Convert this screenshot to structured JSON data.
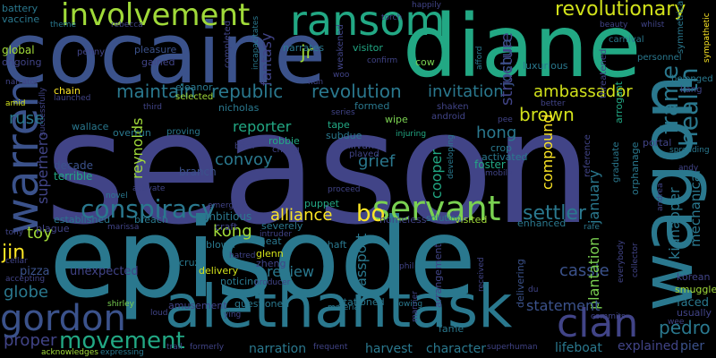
{
  "words": [
    {
      "text": "season",
      "color": "#414487"
    },
    {
      "text": "episode",
      "color": "#2a788e"
    },
    {
      "text": "diane",
      "color": "#22a884"
    },
    {
      "text": "cocaine",
      "color": "#3b528b"
    },
    {
      "text": "alethantask",
      "color": "#2a788e"
    },
    {
      "text": "wagon",
      "color": "#2a788e"
    },
    {
      "text": "ransom",
      "color": "#22a884"
    },
    {
      "text": "involvement",
      "color": "#a0da39"
    },
    {
      "text": "warren",
      "color": "#3b528b"
    },
    {
      "text": "gordon",
      "color": "#3b528b"
    },
    {
      "text": "servant",
      "color": "#7ad151"
    },
    {
      "text": "conspiracy",
      "color": "#2a788e"
    },
    {
      "text": "clan",
      "color": "#414487"
    },
    {
      "text": "movement",
      "color": "#22a884"
    },
    {
      "text": "revolutionary",
      "color": "#d2e21b"
    },
    {
      "text": "republic",
      "color": "#2a788e"
    },
    {
      "text": "revolution",
      "color": "#2a788e"
    },
    {
      "text": "maintain",
      "color": "#2a788e"
    },
    {
      "text": "invitation",
      "color": "#2a788e"
    },
    {
      "text": "settler",
      "color": "#2a788e"
    },
    {
      "text": "health",
      "color": "#2a788e"
    },
    {
      "text": "frame",
      "color": "#2a788e"
    },
    {
      "text": "ambassador",
      "color": "#d2e21b"
    },
    {
      "text": "brown",
      "color": "#d2e21b"
    },
    {
      "text": "structure",
      "color": "#414487"
    },
    {
      "text": "fantasy",
      "color": "#414487"
    },
    {
      "text": "joshua",
      "color": "#3b528b"
    },
    {
      "text": "jr",
      "color": "#a0da39"
    },
    {
      "text": "alliance",
      "color": "#fde725"
    },
    {
      "text": "bo",
      "color": "#fde725"
    },
    {
      "text": "pedro",
      "color": "#2a788e"
    },
    {
      "text": "cassie",
      "color": "#3b528b"
    },
    {
      "text": "kong",
      "color": "#a0da39"
    },
    {
      "text": "jin",
      "color": "#fde725"
    },
    {
      "text": "ruse",
      "color": "#2a788e"
    },
    {
      "text": "superhero",
      "color": "#414487"
    },
    {
      "text": "reynolds",
      "color": "#a0da39"
    },
    {
      "text": "convoy",
      "color": "#2a788e"
    },
    {
      "text": "grief",
      "color": "#2a788e"
    },
    {
      "text": "hong",
      "color": "#2a788e"
    },
    {
      "text": "reporter",
      "color": "#22a884"
    },
    {
      "text": "january",
      "color": "#2a788e"
    },
    {
      "text": "compound",
      "color": "#fde725"
    },
    {
      "text": "cooper",
      "color": "#22a884"
    },
    {
      "text": "kidnapper",
      "color": "#2a788e"
    },
    {
      "text": "mechanical",
      "color": "#2a788e"
    },
    {
      "text": "plantation",
      "color": "#7ad151"
    },
    {
      "text": "statement",
      "color": "#3b528b"
    },
    {
      "text": "passport",
      "color": "#2a788e"
    },
    {
      "text": "review",
      "color": "#2a788e"
    },
    {
      "text": "toy",
      "color": "#a0da39"
    },
    {
      "text": "globe",
      "color": "#2a788e"
    },
    {
      "text": "proper",
      "color": "#414487"
    },
    {
      "text": "narration",
      "color": "#2a788e"
    },
    {
      "text": "harvest",
      "color": "#2a788e"
    },
    {
      "text": "character",
      "color": "#2a788e"
    },
    {
      "text": "lifeboat",
      "color": "#2a788e"
    },
    {
      "text": "explained",
      "color": "#414487"
    },
    {
      "text": "pier",
      "color": "#3b528b"
    },
    {
      "text": "faced",
      "color": "#2a788e"
    },
    {
      "text": "usually",
      "color": "#414487"
    },
    {
      "text": "smuggle",
      "color": "#a0da39"
    },
    {
      "text": "korean",
      "color": "#414487"
    },
    {
      "text": "pizza",
      "color": "#3b528b"
    },
    {
      "text": "unexpected",
      "color": "#414487"
    },
    {
      "text": "ambitious",
      "color": "#2a788e"
    },
    {
      "text": "branch",
      "color": "#3b528b"
    },
    {
      "text": "decade",
      "color": "#3b528b"
    },
    {
      "text": "terrible",
      "color": "#22a884"
    },
    {
      "text": "foster",
      "color": "#22a884"
    },
    {
      "text": "delivering",
      "color": "#3b528b"
    },
    {
      "text": "arrangement",
      "color": "#414487"
    },
    {
      "text": "fame",
      "color": "#2a788e"
    },
    {
      "text": "stationed",
      "color": "#2a788e"
    },
    {
      "text": "questioned",
      "color": "#2a788e"
    },
    {
      "text": "amusement",
      "color": "#414487"
    },
    {
      "text": "glenn",
      "color": "#d2e21b"
    },
    {
      "text": "zheng",
      "color": "#414487"
    },
    {
      "text": "cruz",
      "color": "#2a788e"
    },
    {
      "text": "noticing",
      "color": "#2a788e"
    },
    {
      "text": "delivery",
      "color": "#d2e21b"
    },
    {
      "text": "meat",
      "color": "#2a788e"
    },
    {
      "text": "blown",
      "color": "#2a788e"
    },
    {
      "text": "shaft",
      "color": "#2a788e"
    },
    {
      "text": "severely",
      "color": "#2a788e"
    },
    {
      "text": "homeless",
      "color": "#414487"
    },
    {
      "text": "visited",
      "color": "#a0da39"
    },
    {
      "text": "solution",
      "color": "#2a788e"
    },
    {
      "text": "enhanced",
      "color": "#2a788e"
    },
    {
      "text": "established",
      "color": "#2a788e"
    },
    {
      "text": "plague",
      "color": "#414487"
    },
    {
      "text": "breach",
      "color": "#2a788e"
    },
    {
      "text": "craft",
      "color": "#414487"
    },
    {
      "text": "puppet",
      "color": "#22a884"
    },
    {
      "text": "robbie",
      "color": "#22a884"
    },
    {
      "text": "cheng",
      "color": "#414487"
    },
    {
      "text": "sullivan",
      "color": "#414487"
    },
    {
      "text": "played",
      "color": "#414487"
    },
    {
      "text": "subdue",
      "color": "#2a788e"
    },
    {
      "text": "tape",
      "color": "#22a884"
    },
    {
      "text": "wipe",
      "color": "#7ad151"
    },
    {
      "text": "formed",
      "color": "#2a788e"
    },
    {
      "text": "shaken",
      "color": "#414487"
    },
    {
      "text": "android",
      "color": "#414487"
    },
    {
      "text": "crop",
      "color": "#2a788e"
    },
    {
      "text": "activated",
      "color": "#2a788e"
    },
    {
      "text": "wallace",
      "color": "#2a788e"
    },
    {
      "text": "overrun",
      "color": "#2a788e"
    },
    {
      "text": "proving",
      "color": "#2a788e"
    },
    {
      "text": "portal",
      "color": "#414487"
    },
    {
      "text": "graduate",
      "color": "#2a788e"
    },
    {
      "text": "reference",
      "color": "#414487"
    },
    {
      "text": "orphanage",
      "color": "#2a788e"
    },
    {
      "text": "arrogant",
      "color": "#22a884"
    },
    {
      "text": "threatened",
      "color": "#414487"
    },
    {
      "text": "luxurious",
      "color": "#2a788e"
    },
    {
      "text": "cow",
      "color": "#7ad151"
    },
    {
      "text": "narrates",
      "color": "#2a788e"
    },
    {
      "text": "visitor",
      "color": "#22a884"
    },
    {
      "text": "gained",
      "color": "#414487"
    },
    {
      "text": "pleasure",
      "color": "#3b528b"
    },
    {
      "text": "global",
      "color": "#a0da39"
    },
    {
      "text": "ongoing",
      "color": "#414487"
    },
    {
      "text": "penny",
      "color": "#414487"
    },
    {
      "text": "eleanor",
      "color": "#2a788e"
    },
    {
      "text": "nicholas",
      "color": "#2a788e"
    },
    {
      "text": "selected",
      "color": "#a0da39"
    },
    {
      "text": "chain",
      "color": "#fde725"
    },
    {
      "text": "battery",
      "color": "#2a788e"
    },
    {
      "text": "vaccine",
      "color": "#2a788e"
    },
    {
      "text": "theme",
      "color": "#2a788e"
    },
    {
      "text": "rebecca",
      "color": "#414487"
    },
    {
      "text": "torch",
      "color": "#414487"
    },
    {
      "text": "happily",
      "color": "#414487"
    },
    {
      "text": "beauty",
      "color": "#414487"
    },
    {
      "text": "whilst",
      "color": "#414487"
    },
    {
      "text": "carnival",
      "color": "#2a788e"
    },
    {
      "text": "symmetrical",
      "color": "#2a788e"
    },
    {
      "text": "sympathetic",
      "color": "#fde725"
    },
    {
      "text": "afford",
      "color": "#2a788e"
    },
    {
      "text": "personnel",
      "color": "#2a788e"
    },
    {
      "text": "belonged",
      "color": "#2a788e"
    },
    {
      "text": "kang",
      "color": "#414487"
    },
    {
      "text": "confirm",
      "color": "#414487"
    },
    {
      "text": "completed",
      "color": "#414487"
    },
    {
      "text": "weakened",
      "color": "#414487"
    },
    {
      "text": "nun",
      "color": "#414487"
    },
    {
      "text": "incapacitates",
      "color": "#2a788e"
    },
    {
      "text": "third",
      "color": "#414487"
    },
    {
      "text": "series",
      "color": "#414487"
    },
    {
      "text": "better",
      "color": "#414487"
    },
    {
      "text": "injuring",
      "color": "#22a884"
    },
    {
      "text": "brick",
      "color": "#414487"
    },
    {
      "text": "mobile",
      "color": "#414487"
    },
    {
      "text": "novel",
      "color": "#2a788e"
    },
    {
      "text": "activate",
      "color": "#414487"
    },
    {
      "text": "emerging",
      "color": "#414487"
    },
    {
      "text": "intruder",
      "color": "#414487"
    },
    {
      "text": "proceed",
      "color": "#414487"
    },
    {
      "text": "rafe",
      "color": "#2a788e"
    },
    {
      "text": "andrea",
      "color": "#414487"
    },
    {
      "text": "andy",
      "color": "#414487"
    },
    {
      "text": "spreading",
      "color": "#2a788e"
    },
    {
      "text": "marissa",
      "color": "#414487"
    },
    {
      "text": "hatred",
      "color": "#414487"
    },
    {
      "text": "phil",
      "color": "#414487"
    },
    {
      "text": "received",
      "color": "#414487"
    },
    {
      "text": "producer",
      "color": "#414487"
    },
    {
      "text": "collector",
      "color": "#414487"
    },
    {
      "text": "everybody",
      "color": "#414487"
    },
    {
      "text": "accepting",
      "color": "#414487"
    },
    {
      "text": "shirley",
      "color": "#7ad151"
    },
    {
      "text": "loud",
      "color": "#414487"
    },
    {
      "text": "ying",
      "color": "#414487"
    },
    {
      "text": "formerly",
      "color": "#414487"
    },
    {
      "text": "trail",
      "color": "#414487"
    },
    {
      "text": "acknowledges",
      "color": "#a0da39"
    },
    {
      "text": "expressing",
      "color": "#2a788e"
    },
    {
      "text": "frequent",
      "color": "#414487"
    },
    {
      "text": "superhuman",
      "color": "#414487"
    },
    {
      "text": "vowing",
      "color": "#2a788e"
    },
    {
      "text": "material",
      "color": "#2a788e"
    },
    {
      "text": "commits",
      "color": "#414487"
    },
    {
      "text": "manner",
      "color": "#414487"
    },
    {
      "text": "wee",
      "color": "#414487"
    },
    {
      "text": "cellar",
      "color": "#414487"
    },
    {
      "text": "tony",
      "color": "#414487"
    },
    {
      "text": "du",
      "color": "#414487"
    },
    {
      "text": "pee",
      "color": "#414487"
    },
    {
      "text": "launched",
      "color": "#414487"
    },
    {
      "text": "narrator",
      "color": "#414487"
    },
    {
      "text": "amid",
      "color": "#d2e21b"
    },
    {
      "text": "successfully",
      "color": "#414487"
    },
    {
      "text": "developing",
      "color": "#2a788e"
    },
    {
      "text": "woo",
      "color": "#414487"
    }
  ]
}
